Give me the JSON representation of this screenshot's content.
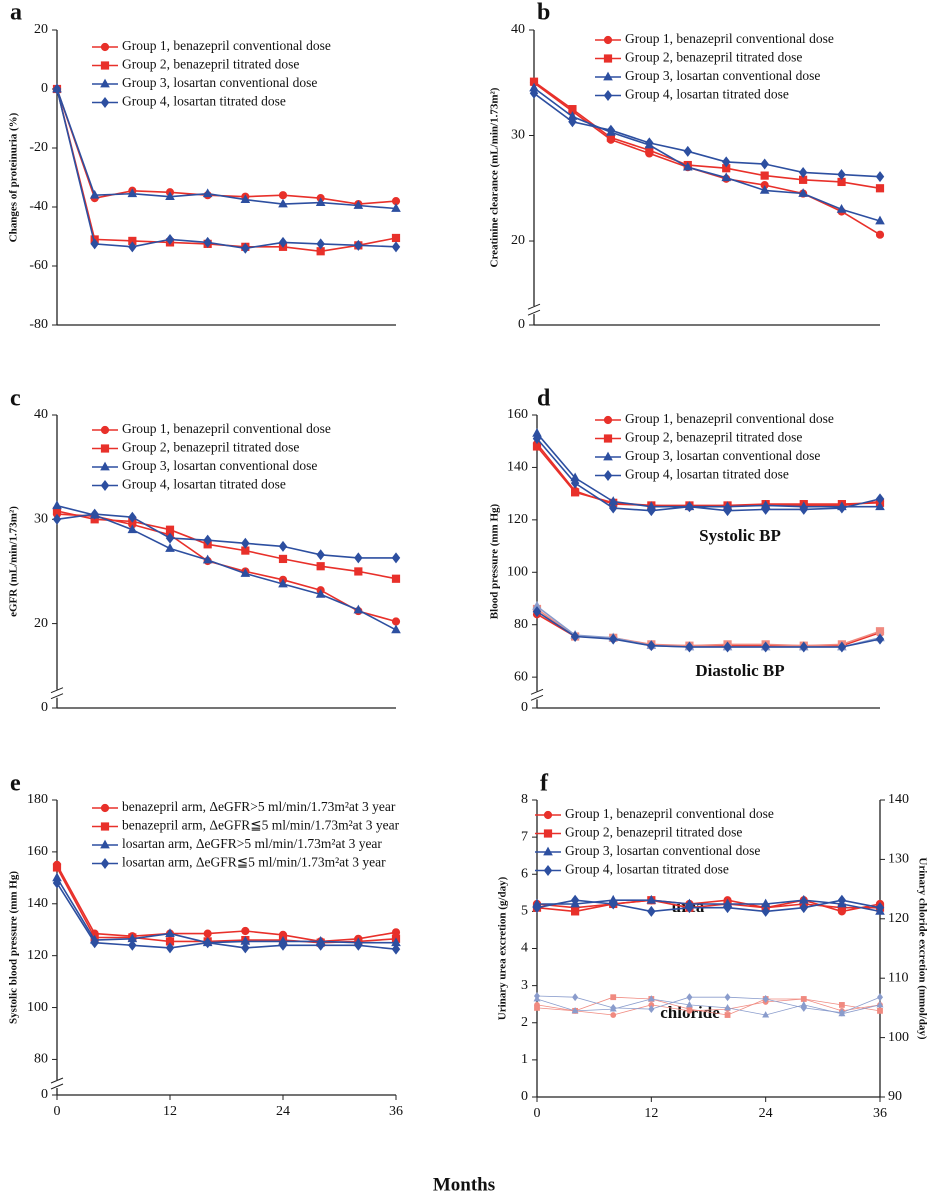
{
  "chart_data": [
    {
      "type": "line",
      "label": "a",
      "ylabel": "Changes of proteinuria (%)",
      "x": [
        0,
        4,
        8,
        12,
        16,
        20,
        24,
        28,
        32,
        36
      ],
      "xlim": [
        0,
        36
      ],
      "ylim": [
        -80,
        20
      ],
      "yticks": [
        -80,
        -60,
        -40,
        -20,
        0,
        20
      ],
      "series": [
        {
          "name": "Group 1, benazepril conventional dose",
          "color": "#e8302a",
          "marker": "circle",
          "values": [
            0,
            -37,
            -34.5,
            -35,
            -36,
            -36.5,
            -36,
            -37,
            -39,
            -38
          ]
        },
        {
          "name": "Group 2, benazepril titrated dose",
          "color": "#e8302a",
          "marker": "square",
          "values": [
            0,
            -51,
            -51.5,
            -52,
            -52.5,
            -53.5,
            -53.5,
            -55,
            -53,
            -50.5
          ]
        },
        {
          "name": "Group 3, losartan conventional dose",
          "color": "#2d4fa0",
          "marker": "triangle",
          "values": [
            0,
            -36,
            -35.5,
            -36.5,
            -35.5,
            -37.5,
            -39,
            -38.5,
            -39.5,
            -40.5
          ]
        },
        {
          "name": "Group 4, losartan titrated dose",
          "color": "#2d4fa0",
          "marker": "diamond",
          "values": [
            0,
            -52.5,
            -53.5,
            -51,
            -52,
            -54,
            -52,
            -52.5,
            -53,
            -53.5
          ]
        }
      ]
    },
    {
      "type": "line",
      "label": "b",
      "ylabel": "Creatinine clearance (mL/min/1.73m²)",
      "x": [
        0,
        4,
        8,
        12,
        16,
        20,
        24,
        28,
        32,
        36
      ],
      "xlim": [
        0,
        36
      ],
      "ylim": [
        14.6,
        40
      ],
      "yticks": [
        0,
        20,
        30,
        40
      ],
      "axis_break": true,
      "series": [
        {
          "name": "Group 1, benazepril conventional dose",
          "color": "#e8302a",
          "marker": "circle",
          "values": [
            35,
            32.3,
            29.6,
            28.3,
            27,
            25.9,
            25.3,
            24.5,
            22.8,
            20.6
          ]
        },
        {
          "name": "Group 2, benazepril titrated dose",
          "color": "#e8302a",
          "marker": "square",
          "values": [
            35.1,
            32.5,
            29.8,
            28.6,
            27.2,
            26.9,
            26.2,
            25.8,
            25.6,
            25.0
          ]
        },
        {
          "name": "Group 3, losartan conventional dose",
          "color": "#2d4fa0",
          "marker": "triangle",
          "values": [
            34.5,
            31.8,
            30.3,
            29.1,
            27.0,
            26.0,
            24.8,
            24.5,
            23.0,
            21.9
          ]
        },
        {
          "name": "Group 4, losartan titrated dose",
          "color": "#2d4fa0",
          "marker": "diamond",
          "values": [
            34,
            31.3,
            30.5,
            29.3,
            28.5,
            27.5,
            27.3,
            26.5,
            26.3,
            26.1
          ]
        }
      ]
    },
    {
      "type": "line",
      "label": "c",
      "ylabel": "eGFR (mL/min/1.73m²)",
      "x": [
        0,
        4,
        8,
        12,
        16,
        20,
        24,
        28,
        32,
        36
      ],
      "xlim": [
        0,
        36
      ],
      "ylim": [
        14.4,
        40
      ],
      "yticks": [
        0,
        20,
        30,
        40
      ],
      "axis_break": true,
      "series": [
        {
          "name": "Group 1, benazepril conventional dose",
          "color": "#e8302a",
          "marker": "circle",
          "values": [
            30.5,
            30.3,
            29.5,
            28.5,
            26.0,
            25.0,
            24.2,
            23.2,
            21.2,
            20.2
          ]
        },
        {
          "name": "Group 2, benazepril titrated dose",
          "color": "#e8302a",
          "marker": "square",
          "values": [
            30.8,
            30.0,
            29.8,
            29.0,
            27.6,
            27.0,
            26.2,
            25.5,
            25.0,
            24.3
          ]
        },
        {
          "name": "Group 3, losartan conventional dose",
          "color": "#2d4fa0",
          "marker": "triangle",
          "values": [
            31.3,
            30.4,
            29.0,
            27.2,
            26.1,
            24.8,
            23.8,
            22.8,
            21.3,
            19.4
          ]
        },
        {
          "name": "Group 4, losartan titrated dose",
          "color": "#2d4fa0",
          "marker": "diamond",
          "values": [
            30.0,
            30.5,
            30.2,
            28.2,
            28.0,
            27.7,
            27.4,
            26.6,
            26.3,
            26.3
          ]
        }
      ]
    },
    {
      "type": "line",
      "label": "d",
      "ylabel": "Blood pressure (mm Hg)",
      "x": [
        0,
        4,
        8,
        12,
        16,
        20,
        24,
        28,
        32,
        36
      ],
      "xlim": [
        0,
        36
      ],
      "ylim": [
        57,
        160
      ],
      "yticks": [
        0,
        60,
        80,
        100,
        120,
        140,
        160
      ],
      "axis_break": true,
      "annotations": [
        "Systolic BP",
        "Diastolic BP"
      ],
      "series": [
        {
          "name": "Group 1, benazepril conventional dose",
          "color": "#e8302a",
          "marker": "circle",
          "values": [
            149,
            131,
            126,
            125.5,
            125,
            125.5,
            125.5,
            125.5,
            125.5,
            127
          ]
        },
        {
          "name": "Group 2, benazepril titrated dose",
          "color": "#e8302a",
          "marker": "square",
          "values": [
            148,
            130.5,
            126.5,
            125.5,
            125.5,
            125.5,
            126,
            126,
            126,
            126.5
          ]
        },
        {
          "name": "Group 3, losartan conventional dose",
          "color": "#2d4fa0",
          "marker": "triangle",
          "values": [
            153,
            136,
            127,
            125,
            125,
            125,
            125.5,
            125,
            125,
            125
          ]
        },
        {
          "name": "Group 4, losartan titrated dose",
          "color": "#2d4fa0",
          "marker": "diamond",
          "values": [
            151,
            134,
            124.5,
            123.5,
            125,
            123.5,
            124,
            124,
            124.5,
            128
          ]
        },
        {
          "name": "Group 1, benazepril conventional dose",
          "color": "#e8302a",
          "marker": "circle",
          "values": [
            84,
            75.5,
            75,
            72,
            72,
            72,
            72,
            72,
            72,
            77
          ]
        },
        {
          "name": "Group 2, benazepril titrated dose",
          "color": "#f08a80",
          "marker": "square",
          "values": [
            86,
            75.5,
            75,
            72.5,
            72,
            72.5,
            72.5,
            72,
            72.5,
            77.5
          ]
        },
        {
          "name": "Group 3, losartan conventional dose",
          "color": "#8a9ccc",
          "marker": "triangle",
          "values": [
            87,
            76,
            75,
            72,
            71.5,
            71.5,
            71.5,
            71.5,
            71.5,
            75
          ]
        },
        {
          "name": "Group 4, losartan titrated dose",
          "color": "#2d4fa0",
          "marker": "diamond",
          "values": [
            85,
            75.5,
            74.5,
            72,
            71.5,
            71.5,
            71.5,
            71.5,
            71.5,
            74.5
          ]
        }
      ]
    },
    {
      "type": "line",
      "label": "e",
      "ylabel": "Systolic blood pressure (mm Hg)",
      "x": [
        0,
        4,
        8,
        12,
        16,
        20,
        24,
        28,
        32,
        36
      ],
      "xlim": [
        0,
        36
      ],
      "xticks": [
        0,
        12,
        24,
        36
      ],
      "ylim": [
        74,
        180
      ],
      "yticks": [
        0,
        80,
        100,
        120,
        140,
        160,
        180
      ],
      "axis_break": true,
      "series": [
        {
          "name": "benazepril arm, ΔeGFR>5 ml/min/1.73m²at 3 year",
          "color": "#e8302a",
          "marker": "circle",
          "values": [
            155,
            128.5,
            127.5,
            128.5,
            128.5,
            129.5,
            128,
            125.5,
            126.5,
            129
          ]
        },
        {
          "name": "benazepril arm, ΔeGFR≦5 ml/min/1.73m²at 3 year",
          "color": "#e8302a",
          "marker": "square",
          "values": [
            154,
            127,
            127,
            125.5,
            125.5,
            126,
            126,
            125,
            125.5,
            126.5
          ]
        },
        {
          "name": "losartan arm, ΔeGFR>5 ml/min/1.73m²at 3 year",
          "color": "#2d4fa0",
          "marker": "triangle",
          "values": [
            150,
            126,
            126.5,
            128.5,
            125,
            125.5,
            125.5,
            125.5,
            125,
            125
          ]
        },
        {
          "name": "losartan arm, ΔeGFR≦5 ml/min/1.73m²at 3 year",
          "color": "#2d4fa0",
          "marker": "diamond",
          "values": [
            148,
            125,
            124,
            123,
            125,
            123,
            124,
            124,
            124,
            122.5
          ]
        }
      ]
    },
    {
      "type": "line",
      "label": "f",
      "ylabel": "Urinary urea excretion (g/day)",
      "y2label": "Urinary chloride excretion (mmol/day)",
      "x": [
        0,
        4,
        8,
        12,
        16,
        20,
        24,
        28,
        32,
        36
      ],
      "xlim": [
        0,
        36
      ],
      "xticks": [
        0,
        12,
        24,
        36
      ],
      "ylim": [
        0,
        8
      ],
      "yticks": [
        0,
        1,
        2,
        3,
        4,
        5,
        6,
        7,
        8
      ],
      "y2lim": [
        90,
        140
      ],
      "y2ticks": [
        90,
        100,
        110,
        120,
        130,
        140
      ],
      "annotations": [
        "urea",
        "chloride"
      ],
      "series": [
        {
          "name": "Group 1, benazepril conventional dose",
          "color": "#e8302a",
          "marker": "circle",
          "values": [
            5.2,
            5.1,
            5.2,
            5.3,
            5.2,
            5.3,
            5.1,
            5.3,
            5.0,
            5.2
          ]
        },
        {
          "name": "Group 2, benazepril titrated dose",
          "color": "#e8302a",
          "marker": "square",
          "values": [
            5.1,
            5.0,
            5.2,
            5.3,
            5.1,
            5.2,
            5.1,
            5.2,
            5.1,
            5.1
          ]
        },
        {
          "name": "Group 3, losartan conventional dose",
          "color": "#2d4fa0",
          "marker": "triangle",
          "values": [
            5.2,
            5.2,
            5.3,
            5.3,
            5.2,
            5.2,
            5.2,
            5.3,
            5.2,
            5.0
          ]
        },
        {
          "name": "Group 4, losartan titrated dose",
          "color": "#2d4fa0",
          "marker": "diamond",
          "values": [
            5.1,
            5.3,
            5.2,
            5.0,
            5.1,
            5.1,
            5.0,
            5.1,
            5.3,
            5.1
          ]
        },
        {
          "name": "Group 1, benazepril conventional dose",
          "color": "#f08a80",
          "marker": "circle",
          "axis": "y2",
          "linewidth": 0.8,
          "values": [
            105.5,
            104.5,
            103.8,
            105.5,
            104.5,
            104.8,
            106,
            106.5,
            104.5,
            105.5
          ]
        },
        {
          "name": "Group 2, benazepril titrated dose",
          "color": "#f08a80",
          "marker": "square",
          "axis": "y2",
          "linewidth": 0.8,
          "values": [
            105,
            104.5,
            106.8,
            106.5,
            104.8,
            103.8,
            106.5,
            106.5,
            105.5,
            104.5
          ]
        },
        {
          "name": "Group 3, losartan conventional dose",
          "color": "#8a9ccc",
          "marker": "triangle",
          "axis": "y2",
          "linewidth": 0.8,
          "values": [
            106.5,
            104.5,
            104.8,
            106.5,
            105.5,
            105,
            103.8,
            105.5,
            104,
            105.5
          ]
        },
        {
          "name": "Group 4, losartan titrated dose",
          "color": "#8a9ccc",
          "marker": "diamond",
          "axis": "y2",
          "linewidth": 0.8,
          "values": [
            107,
            106.8,
            105,
            104.8,
            106.8,
            106.8,
            106.5,
            105,
            104.2,
            106.8
          ]
        }
      ]
    }
  ],
  "xlabel": "Months"
}
